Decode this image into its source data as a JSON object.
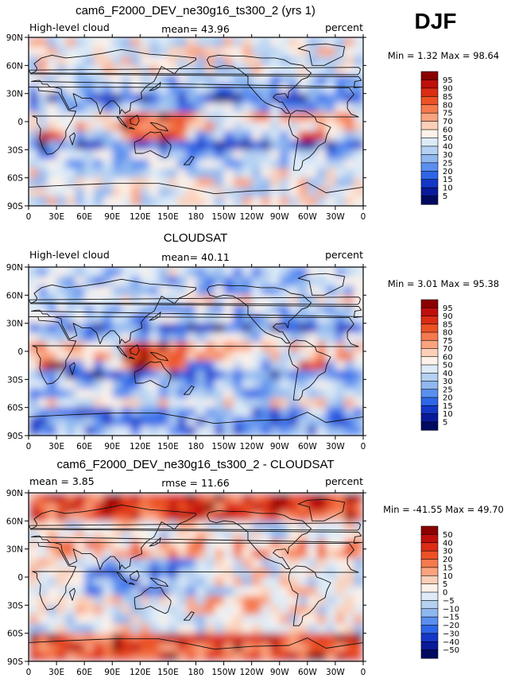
{
  "season": "DJF",
  "chart_data": [
    {
      "type": "heatmap",
      "title": "cam6_F2000_DEV_ne30g16_ts300_2 (yrs 1)",
      "left_label": "High-level cloud",
      "center_label": "mean=  43.96",
      "right_label": "percent",
      "minmax": "Min =    1.32  Max =   98.64",
      "mean": 43.96,
      "min": 1.32,
      "max": 98.64,
      "units": "percent",
      "x_ticks": [
        "0",
        "30E",
        "60E",
        "90E",
        "120E",
        "150E",
        "180",
        "150W",
        "120W",
        "90W",
        "60W",
        "30W",
        "0"
      ],
      "y_ticks": [
        "90N",
        "60N",
        "30N",
        "0",
        "30S",
        "60S",
        "90S"
      ],
      "colorbar": {
        "labels": [
          "95",
          "90",
          "85",
          "80",
          "75",
          "70",
          "60",
          "50",
          "40",
          "30",
          "25",
          "20",
          "15",
          "10",
          "5"
        ],
        "colors": [
          "#8b0000",
          "#bf0f0b",
          "#dc2c14",
          "#ec5225",
          "#f57a4d",
          "#fba37f",
          "#fcd0b8",
          "#fdf2e9",
          "#deebf7",
          "#b5d1f2",
          "#8fb8ef",
          "#5a8ff0",
          "#2f66e8",
          "#1537c8",
          "#0a1a9a",
          "#020a60"
        ]
      }
    },
    {
      "type": "heatmap",
      "title": "CLOUDSAT",
      "left_label": "High-level cloud",
      "center_label": "mean=  40.11",
      "right_label": "percent",
      "minmax": "Min =    3.01  Max =   95.38",
      "mean": 40.11,
      "min": 3.01,
      "max": 95.38,
      "units": "percent",
      "x_ticks": [
        "0",
        "30E",
        "60E",
        "90E",
        "120E",
        "150E",
        "180",
        "150W",
        "120W",
        "90W",
        "60W",
        "30W",
        "0"
      ],
      "y_ticks": [
        "90N",
        "60N",
        "30N",
        "0",
        "30S",
        "60S",
        "90S"
      ],
      "colorbar": {
        "labels": [
          "95",
          "90",
          "85",
          "80",
          "75",
          "70",
          "60",
          "50",
          "40",
          "30",
          "25",
          "20",
          "15",
          "10",
          "5"
        ],
        "colors": [
          "#8b0000",
          "#bf0f0b",
          "#dc2c14",
          "#ec5225",
          "#f57a4d",
          "#fba37f",
          "#fcd0b8",
          "#fdf2e9",
          "#deebf7",
          "#b5d1f2",
          "#8fb8ef",
          "#5a8ff0",
          "#2f66e8",
          "#1537c8",
          "#0a1a9a",
          "#020a60"
        ]
      }
    },
    {
      "type": "heatmap",
      "title": "cam6_F2000_DEV_ne30g16_ts300_2 - CLOUDSAT",
      "left_label": "mean =   3.85",
      "center_label": "rmse =  11.66",
      "right_label": "percent",
      "minmax": "Min = -41.55  Max =   49.70",
      "mean": 3.85,
      "rmse": 11.66,
      "min": -41.55,
      "max": 49.7,
      "units": "percent",
      "x_ticks": [
        "0",
        "30E",
        "60E",
        "90E",
        "120E",
        "150E",
        "180",
        "150W",
        "120W",
        "90W",
        "60W",
        "30W",
        "0"
      ],
      "y_ticks": [
        "90N",
        "60N",
        "30N",
        "0",
        "30S",
        "60S",
        "90S"
      ],
      "colorbar": {
        "labels": [
          "50",
          "40",
          "30",
          "20",
          "15",
          "10",
          "5",
          "0",
          "−5",
          "−10",
          "−15",
          "−20",
          "−30",
          "−40",
          "−50"
        ],
        "colors": [
          "#8b0000",
          "#bf0f0b",
          "#dc2c14",
          "#ec5225",
          "#f57a4d",
          "#fba37f",
          "#fcd0b8",
          "#fdf2e9",
          "#deebf7",
          "#b5d1f2",
          "#8fb8ef",
          "#5a8ff0",
          "#2f66e8",
          "#1537c8",
          "#0a1a9a",
          "#020a60"
        ]
      }
    }
  ]
}
